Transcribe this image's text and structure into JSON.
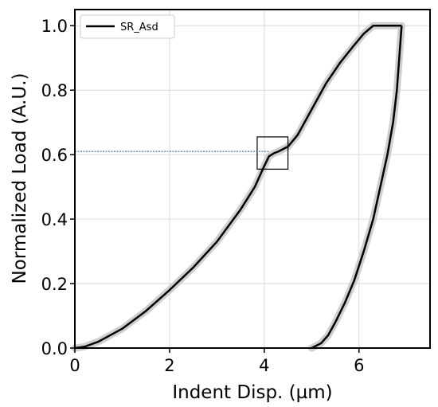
{
  "chart_data": {
    "type": "line",
    "xlabel": "Indent Disp. (µm)",
    "ylabel": "Normalized Load (A.U.)",
    "xlim": [
      0,
      7.5
    ],
    "ylim": [
      0,
      1.05
    ],
    "xticks": [
      "0",
      "2",
      "4",
      "6"
    ],
    "yticks": [
      "0.0",
      "0.2",
      "0.4",
      "0.6",
      "0.8",
      "1.0"
    ],
    "grid": true,
    "legend_position": "top-left",
    "series": [
      {
        "name": "SR_Asd",
        "color": "#000000",
        "band_color": "#cfcfcf",
        "loading": {
          "x": [
            0,
            0.2,
            0.5,
            1.0,
            1.5,
            2.0,
            2.5,
            3.0,
            3.5,
            3.8,
            4.0,
            4.1,
            4.2,
            4.3,
            4.5,
            4.7,
            5.0,
            5.3,
            5.6,
            5.9,
            6.1,
            6.3,
            6.5,
            6.8
          ],
          "y": [
            0,
            0.004,
            0.02,
            0.06,
            0.115,
            0.18,
            0.25,
            0.33,
            0.43,
            0.5,
            0.565,
            0.595,
            0.604,
            0.61,
            0.625,
            0.66,
            0.74,
            0.82,
            0.885,
            0.94,
            0.975,
            1.0,
            1.0,
            1.0
          ]
        },
        "unloading": {
          "x": [
            6.9,
            6.85,
            6.8,
            6.72,
            6.6,
            6.45,
            6.3,
            6.1,
            5.9,
            5.7,
            5.5,
            5.35,
            5.2,
            5.0
          ],
          "y": [
            1.0,
            0.9,
            0.8,
            0.7,
            0.6,
            0.5,
            0.4,
            0.3,
            0.21,
            0.14,
            0.08,
            0.04,
            0.015,
            0.0
          ]
        }
      }
    ],
    "annotations": {
      "highlight_box": {
        "x": [
          3.85,
          4.5
        ],
        "y": [
          0.555,
          0.655
        ]
      },
      "reference_line": {
        "y": 0.61,
        "x_end": 4.1,
        "color": "#1f4e9c"
      }
    }
  }
}
